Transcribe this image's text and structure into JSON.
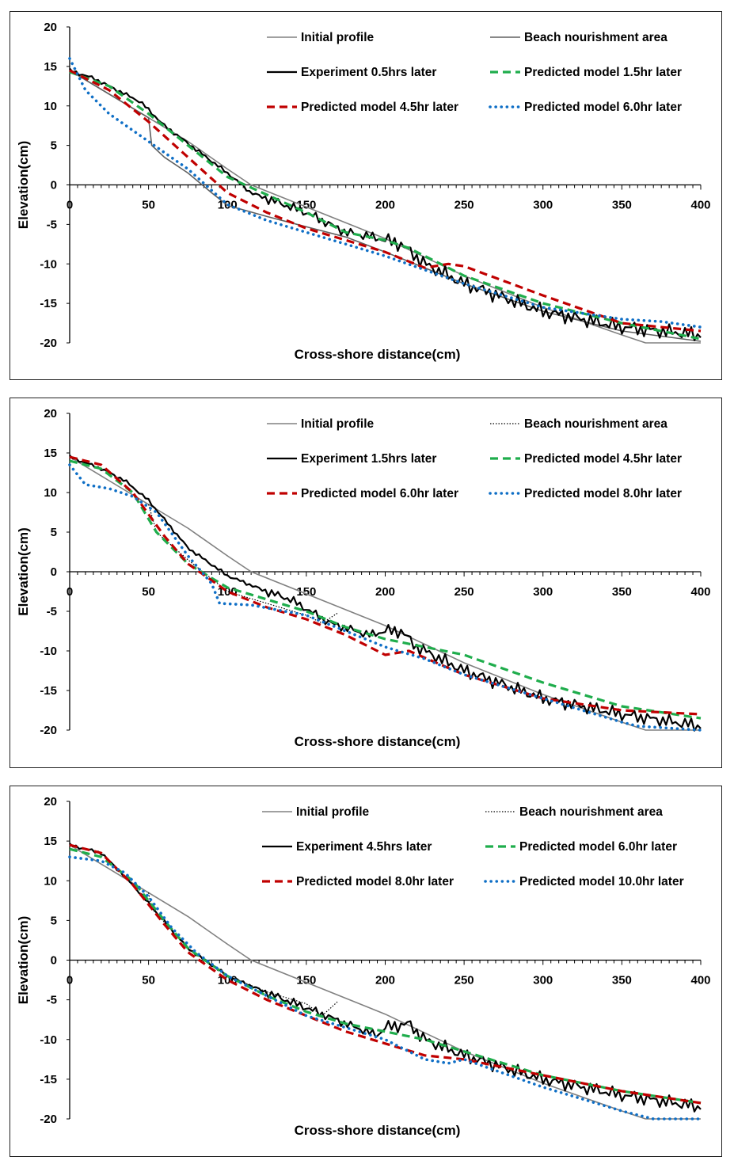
{
  "chart_data": [
    {
      "type": "line",
      "xlabel": "Cross-shore distance(cm)",
      "ylabel": "Elevation(cm)",
      "xlim": [
        0,
        400
      ],
      "ylim": [
        -20,
        20
      ],
      "x_ticks": [
        "0",
        "50",
        "100",
        "150",
        "200",
        "250",
        "300",
        "350",
        "400"
      ],
      "y_ticks": [
        "20",
        "15",
        "10",
        "5",
        "0",
        "-5",
        "-10",
        "-15",
        "-20"
      ],
      "legend": "top-right",
      "series": [
        {
          "name": "Initial profile",
          "color": "#808080",
          "style": "solid-thin",
          "x": [
            0,
            25,
            50,
            75,
            100,
            115,
            150,
            200,
            250,
            300,
            350,
            365,
            400
          ],
          "y": [
            14.5,
            11.5,
            8.5,
            5.5,
            2.0,
            0,
            -2.8,
            -6.8,
            -11.5,
            -15.5,
            -19.0,
            -20,
            -20
          ]
        },
        {
          "name": "Beach nourishment area",
          "color": "#606060",
          "style": "solid-thin",
          "x": [
            0,
            25,
            50,
            52,
            60,
            75,
            90,
            100,
            125,
            150,
            175,
            200,
            250,
            300,
            350,
            400
          ],
          "y": [
            14.5,
            11.5,
            8.5,
            5.0,
            3.5,
            1.5,
            -1.0,
            -2.6,
            -4.0,
            -5.3,
            -6.6,
            -8.5,
            -12.5,
            -16.0,
            -18.5,
            -19.8
          ]
        },
        {
          "name": "Experiment 0.5hrs later",
          "color": "#000000",
          "style": "solid",
          "noise": 0.5,
          "x": [
            0,
            15,
            30,
            45,
            60,
            80,
            100,
            115,
            150,
            175,
            190,
            210,
            225,
            250,
            300,
            350,
            400
          ],
          "y": [
            14.5,
            13.5,
            12.0,
            10.5,
            7.5,
            4.5,
            1.5,
            -1.0,
            -3.5,
            -6.0,
            -6.5,
            -7.5,
            -10.0,
            -12.5,
            -16.0,
            -18.0,
            -19.0
          ]
        },
        {
          "name": "Predicted model 1.5hr later",
          "color": "#1fad4c",
          "style": "dashed",
          "x": [
            0,
            25,
            50,
            75,
            100,
            150,
            175,
            200,
            215,
            250,
            300,
            350,
            400
          ],
          "y": [
            14.3,
            12.5,
            9.0,
            5.0,
            1.0,
            -3.5,
            -6.0,
            -7.0,
            -8.0,
            -11.5,
            -15.0,
            -17.5,
            -19.5
          ]
        },
        {
          "name": "Predicted model 4.5hr later",
          "color": "#c00000",
          "style": "dashed",
          "x": [
            0,
            25,
            50,
            75,
            100,
            125,
            150,
            175,
            200,
            225,
            240,
            250,
            300,
            350,
            400
          ],
          "y": [
            14.5,
            12.0,
            8.0,
            3.5,
            -1.0,
            -3.5,
            -5.5,
            -7.0,
            -8.5,
            -10.5,
            -10.0,
            -10.3,
            -14.0,
            -17.5,
            -18.5
          ]
        },
        {
          "name": "Predicted model 6.0hr later",
          "color": "#0f6fc6",
          "style": "dotted",
          "x": [
            0,
            10,
            25,
            50,
            75,
            100,
            125,
            150,
            175,
            200,
            250,
            300,
            350,
            375,
            400
          ],
          "y": [
            16.0,
            12.0,
            9.0,
            5.5,
            2.0,
            -2.5,
            -4.5,
            -6.0,
            -7.5,
            -9.0,
            -12.5,
            -15.5,
            -17.0,
            -17.3,
            -18.0
          ]
        }
      ]
    },
    {
      "type": "line",
      "xlabel": "Cross-shore distance(cm)",
      "ylabel": "Elevation(cm)",
      "xlim": [
        0,
        400
      ],
      "ylim": [
        -20,
        20
      ],
      "x_ticks": [
        "0",
        "50",
        "100",
        "150",
        "200",
        "250",
        "300",
        "350",
        "400"
      ],
      "y_ticks": [
        "20",
        "15",
        "10",
        "5",
        "0",
        "-5",
        "-10",
        "-15",
        "-20"
      ],
      "legend": "top-right",
      "series": [
        {
          "name": "Initial profile",
          "color": "#808080",
          "style": "solid-thin",
          "x": [
            0,
            25,
            50,
            75,
            100,
            115,
            150,
            200,
            250,
            300,
            350,
            365,
            400
          ],
          "y": [
            14.5,
            11.5,
            8.5,
            5.5,
            2.0,
            0,
            -2.8,
            -6.8,
            -11.5,
            -15.5,
            -19.0,
            -20,
            -20
          ]
        },
        {
          "name": "Beach nourishment area",
          "color": "#000000",
          "style": "dotted-thin",
          "x": [
            50,
            55,
            75,
            100,
            125,
            150,
            160,
            170
          ],
          "y": [
            8.5,
            5.0,
            1.5,
            -2.5,
            -4.0,
            -5.5,
            -6.5,
            -5.2
          ]
        },
        {
          "name": "Experiment 1.5hrs later",
          "color": "#000000",
          "style": "solid",
          "noise": 0.45,
          "x": [
            0,
            20,
            35,
            50,
            75,
            100,
            125,
            140,
            165,
            190,
            200,
            210,
            220,
            250,
            300,
            350,
            400
          ],
          "y": [
            14.5,
            13.0,
            11.5,
            9.0,
            3.0,
            -0.5,
            -2.5,
            -3.5,
            -6.5,
            -8.0,
            -7.5,
            -7.5,
            -9.5,
            -12.5,
            -16.0,
            -18.0,
            -19.5
          ]
        },
        {
          "name": "Predicted model 4.5hr later",
          "color": "#1fad4c",
          "style": "dashed",
          "x": [
            0,
            20,
            40,
            55,
            75,
            100,
            125,
            150,
            175,
            200,
            225,
            250,
            300,
            350,
            400
          ],
          "y": [
            14.0,
            13.0,
            10.0,
            5.0,
            1.0,
            -2.0,
            -3.5,
            -5.0,
            -7.0,
            -8.5,
            -9.5,
            -10.5,
            -14.0,
            -17.0,
            -18.5
          ]
        },
        {
          "name": "Predicted model 6.0hr later",
          "color": "#c00000",
          "style": "dashed",
          "x": [
            0,
            20,
            40,
            60,
            75,
            100,
            125,
            150,
            175,
            200,
            215,
            250,
            300,
            350,
            400
          ],
          "y": [
            14.5,
            13.5,
            10.0,
            4.5,
            1.0,
            -2.5,
            -4.5,
            -6.0,
            -8.0,
            -10.5,
            -10.0,
            -13.0,
            -16.0,
            -17.5,
            -18.0
          ]
        },
        {
          "name": "Predicted model 8.0hr later",
          "color": "#0f6fc6",
          "style": "dotted",
          "x": [
            0,
            10,
            25,
            40,
            55,
            75,
            90,
            95,
            115,
            150,
            175,
            200,
            225,
            250,
            300,
            350,
            360,
            400
          ],
          "y": [
            13.5,
            11.0,
            10.5,
            9.5,
            7.5,
            2.0,
            -1.5,
            -4.0,
            -4.2,
            -5.5,
            -7.5,
            -9.5,
            -11.0,
            -13.0,
            -16.0,
            -19.0,
            -19.5,
            -20.0
          ]
        }
      ]
    },
    {
      "type": "line",
      "xlabel": "Cross-shore distance(cm)",
      "ylabel": "Elevation(cm)",
      "xlim": [
        0,
        400
      ],
      "ylim": [
        -20,
        20
      ],
      "x_ticks": [
        "0",
        "50",
        "100",
        "150",
        "200",
        "250",
        "300",
        "350",
        "400"
      ],
      "y_ticks": [
        "20",
        "15",
        "10",
        "5",
        "0",
        "-5",
        "-10",
        "-15",
        "-20"
      ],
      "legend": "top-right",
      "series": [
        {
          "name": "Initial profile",
          "color": "#808080",
          "style": "solid-thin",
          "x": [
            0,
            25,
            50,
            75,
            100,
            115,
            150,
            200,
            250,
            300,
            350,
            365,
            400
          ],
          "y": [
            14.5,
            11.5,
            8.5,
            5.5,
            2.0,
            0,
            -2.8,
            -6.8,
            -11.5,
            -15.5,
            -19.0,
            -20,
            -20
          ]
        },
        {
          "name": "Beach nourishment area",
          "color": "#000000",
          "style": "dotted-thin",
          "x": [
            50,
            52,
            75,
            100,
            125,
            150,
            160,
            170
          ],
          "y": [
            8.5,
            6.5,
            1.5,
            -2.0,
            -4.0,
            -5.5,
            -7.0,
            -5.2
          ]
        },
        {
          "name": "Experiment 4.5hrs later",
          "color": "#000000",
          "style": "solid",
          "noise": 0.45,
          "x": [
            0,
            20,
            40,
            55,
            75,
            100,
            130,
            150,
            175,
            195,
            200,
            215,
            225,
            250,
            300,
            350,
            400
          ],
          "y": [
            14.5,
            13.5,
            9.5,
            6.0,
            1.5,
            -2.0,
            -4.5,
            -6.0,
            -8.0,
            -9.5,
            -8.5,
            -8.0,
            -10.0,
            -12.0,
            -15.0,
            -17.0,
            -18.5
          ]
        },
        {
          "name": "Predicted model 6.0hr later",
          "color": "#1fad4c",
          "style": "dashed",
          "x": [
            0,
            20,
            40,
            60,
            75,
            100,
            125,
            150,
            175,
            200,
            225,
            250,
            300,
            350,
            400
          ],
          "y": [
            14.0,
            13.0,
            10.0,
            5.0,
            1.5,
            -2.0,
            -4.5,
            -6.5,
            -8.0,
            -9.0,
            -10.0,
            -11.5,
            -14.5,
            -16.5,
            -18.0
          ]
        },
        {
          "name": "Predicted model 8.0hr later",
          "color": "#c00000",
          "style": "dashed",
          "x": [
            0,
            20,
            40,
            60,
            75,
            100,
            125,
            150,
            175,
            200,
            225,
            250,
            300,
            350,
            400
          ],
          "y": [
            14.5,
            13.5,
            9.5,
            4.5,
            1.0,
            -2.5,
            -5.0,
            -7.0,
            -9.0,
            -10.5,
            -12.0,
            -12.5,
            -14.5,
            -16.5,
            -18.0
          ]
        },
        {
          "name": "Predicted model 10.0hr later",
          "color": "#0f6fc6",
          "style": "dotted",
          "x": [
            0,
            20,
            35,
            50,
            65,
            80,
            100,
            125,
            150,
            175,
            200,
            225,
            240,
            250,
            300,
            350,
            370,
            400
          ],
          "y": [
            13.0,
            12.5,
            11.0,
            8.0,
            4.0,
            1.0,
            -2.0,
            -4.5,
            -7.0,
            -8.5,
            -10.0,
            -12.5,
            -13.0,
            -12.5,
            -16.0,
            -19.0,
            -20.0,
            -20.0
          ]
        }
      ]
    }
  ]
}
